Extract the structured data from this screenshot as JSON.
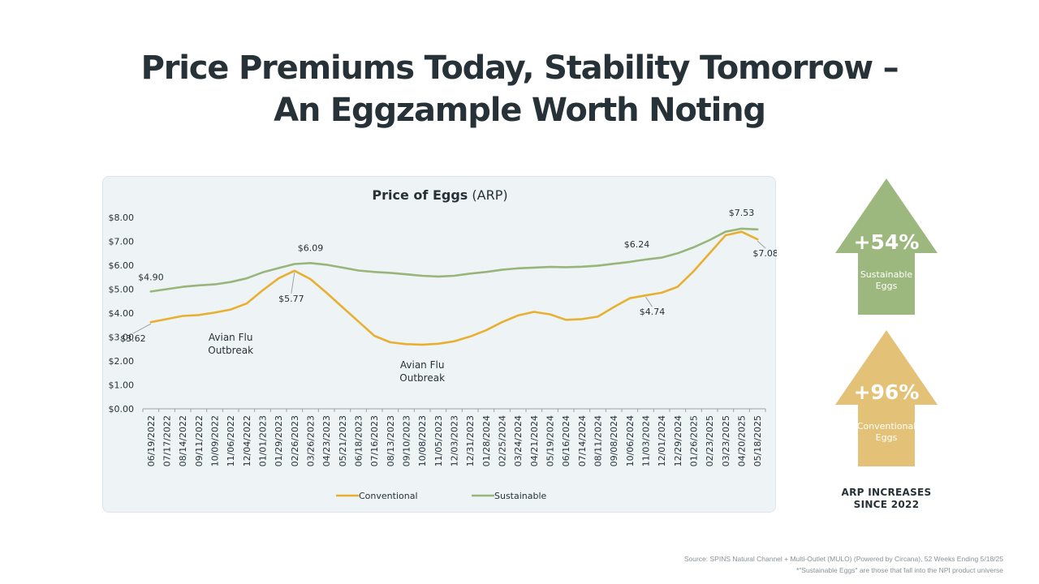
{
  "title": {
    "line1": "Price Premiums Today, Stability Tomorrow  –",
    "line2": "An Eggzample Worth Noting"
  },
  "chart_data": {
    "type": "line",
    "title": "Price of Eggs",
    "title_suffix": "(ARP)",
    "xlabel": "",
    "ylabel": "",
    "ylim": [
      0,
      8
    ],
    "y_ticks": [
      "$0.00",
      "$1.00",
      "$2.00",
      "$3.00",
      "$4.00",
      "$5.00",
      "$6.00",
      "$7.00",
      "$8.00"
    ],
    "grid": false,
    "legend_position": "bottom",
    "categories": [
      "06/19/2022",
      "07/17/2022",
      "08/14/2022",
      "09/11/2022",
      "10/09/2022",
      "11/06/2022",
      "12/04/2022",
      "01/01/2023",
      "01/29/2023",
      "02/26/2023",
      "03/26/2023",
      "04/23/2023",
      "05/21/2023",
      "06/18/2023",
      "07/16/2023",
      "08/13/2023",
      "09/10/2023",
      "10/08/2023",
      "11/05/2023",
      "12/03/2023",
      "12/31/2023",
      "01/28/2024",
      "02/25/2024",
      "03/24/2024",
      "04/21/2024",
      "05/19/2024",
      "06/16/2024",
      "07/14/2024",
      "08/11/2024",
      "09/08/2024",
      "10/06/2024",
      "11/03/2024",
      "12/01/2024",
      "12/29/2024",
      "01/26/2025",
      "02/23/2025",
      "03/23/2025",
      "04/20/2025",
      "05/18/2025"
    ],
    "series": [
      {
        "name": "Conventional",
        "color": "#e8b031",
        "values": [
          3.62,
          3.75,
          3.88,
          3.92,
          4.02,
          4.15,
          4.4,
          4.95,
          5.45,
          5.77,
          5.42,
          4.85,
          4.25,
          3.65,
          3.05,
          2.78,
          2.7,
          2.68,
          2.72,
          2.82,
          3.02,
          3.28,
          3.62,
          3.9,
          4.05,
          3.95,
          3.72,
          3.75,
          3.85,
          4.25,
          4.62,
          4.74,
          4.85,
          5.1,
          5.75,
          6.5,
          7.25,
          7.4,
          7.08
        ]
      },
      {
        "name": "Sustainable",
        "color": "#98b57a",
        "values": [
          4.9,
          5.0,
          5.1,
          5.16,
          5.2,
          5.3,
          5.45,
          5.7,
          5.88,
          6.05,
          6.09,
          6.02,
          5.9,
          5.78,
          5.72,
          5.68,
          5.62,
          5.56,
          5.53,
          5.56,
          5.65,
          5.72,
          5.81,
          5.87,
          5.9,
          5.93,
          5.92,
          5.94,
          5.98,
          6.06,
          6.14,
          6.24,
          6.32,
          6.5,
          6.75,
          7.05,
          7.4,
          7.53,
          7.5
        ]
      }
    ],
    "data_labels": [
      {
        "series": "Conventional",
        "index": 0,
        "text": "$3.62"
      },
      {
        "series": "Conventional",
        "index": 9,
        "text": "$5.77"
      },
      {
        "series": "Conventional",
        "index": 31,
        "text": "$4.74"
      },
      {
        "series": "Conventional",
        "index": 38,
        "text": "$7.08"
      },
      {
        "series": "Sustainable",
        "index": 0,
        "text": "$4.90"
      },
      {
        "series": "Sustainable",
        "index": 10,
        "text": "$6.09"
      },
      {
        "series": "Sustainable",
        "index": 31,
        "text": "$6.24"
      },
      {
        "series": "Sustainable",
        "index": 37,
        "text": "$7.53"
      }
    ],
    "annotations": [
      {
        "lines": [
          "Avian Flu",
          "Outbreak"
        ],
        "at_category": "11/06/2022",
        "near_value": 2.85
      },
      {
        "lines": [
          "Avian Flu",
          "Outbreak"
        ],
        "at_category": "10/08/2023",
        "near_value": 1.7
      }
    ]
  },
  "sidebar": {
    "sustainable": {
      "pct": "+54%",
      "label_line1": "Sustainable",
      "label_line2": "Eggs",
      "color": "#9db87e"
    },
    "conventional": {
      "pct": "+96%",
      "label_line1": "Conventional",
      "label_line2": "Eggs",
      "color": "#e3c278"
    },
    "caption_line1": "ARP INCREASES",
    "caption_line2": "SINCE 2022"
  },
  "footer": {
    "source_line1": "Source: SPINS Natural Channel + Multi-Outlet (MULO) (Powered by Circana), 52 Weeks Ending 5/18/25",
    "source_line2": "*\"Sustainable Eggs\" are those that fall into the NPI product universe"
  }
}
